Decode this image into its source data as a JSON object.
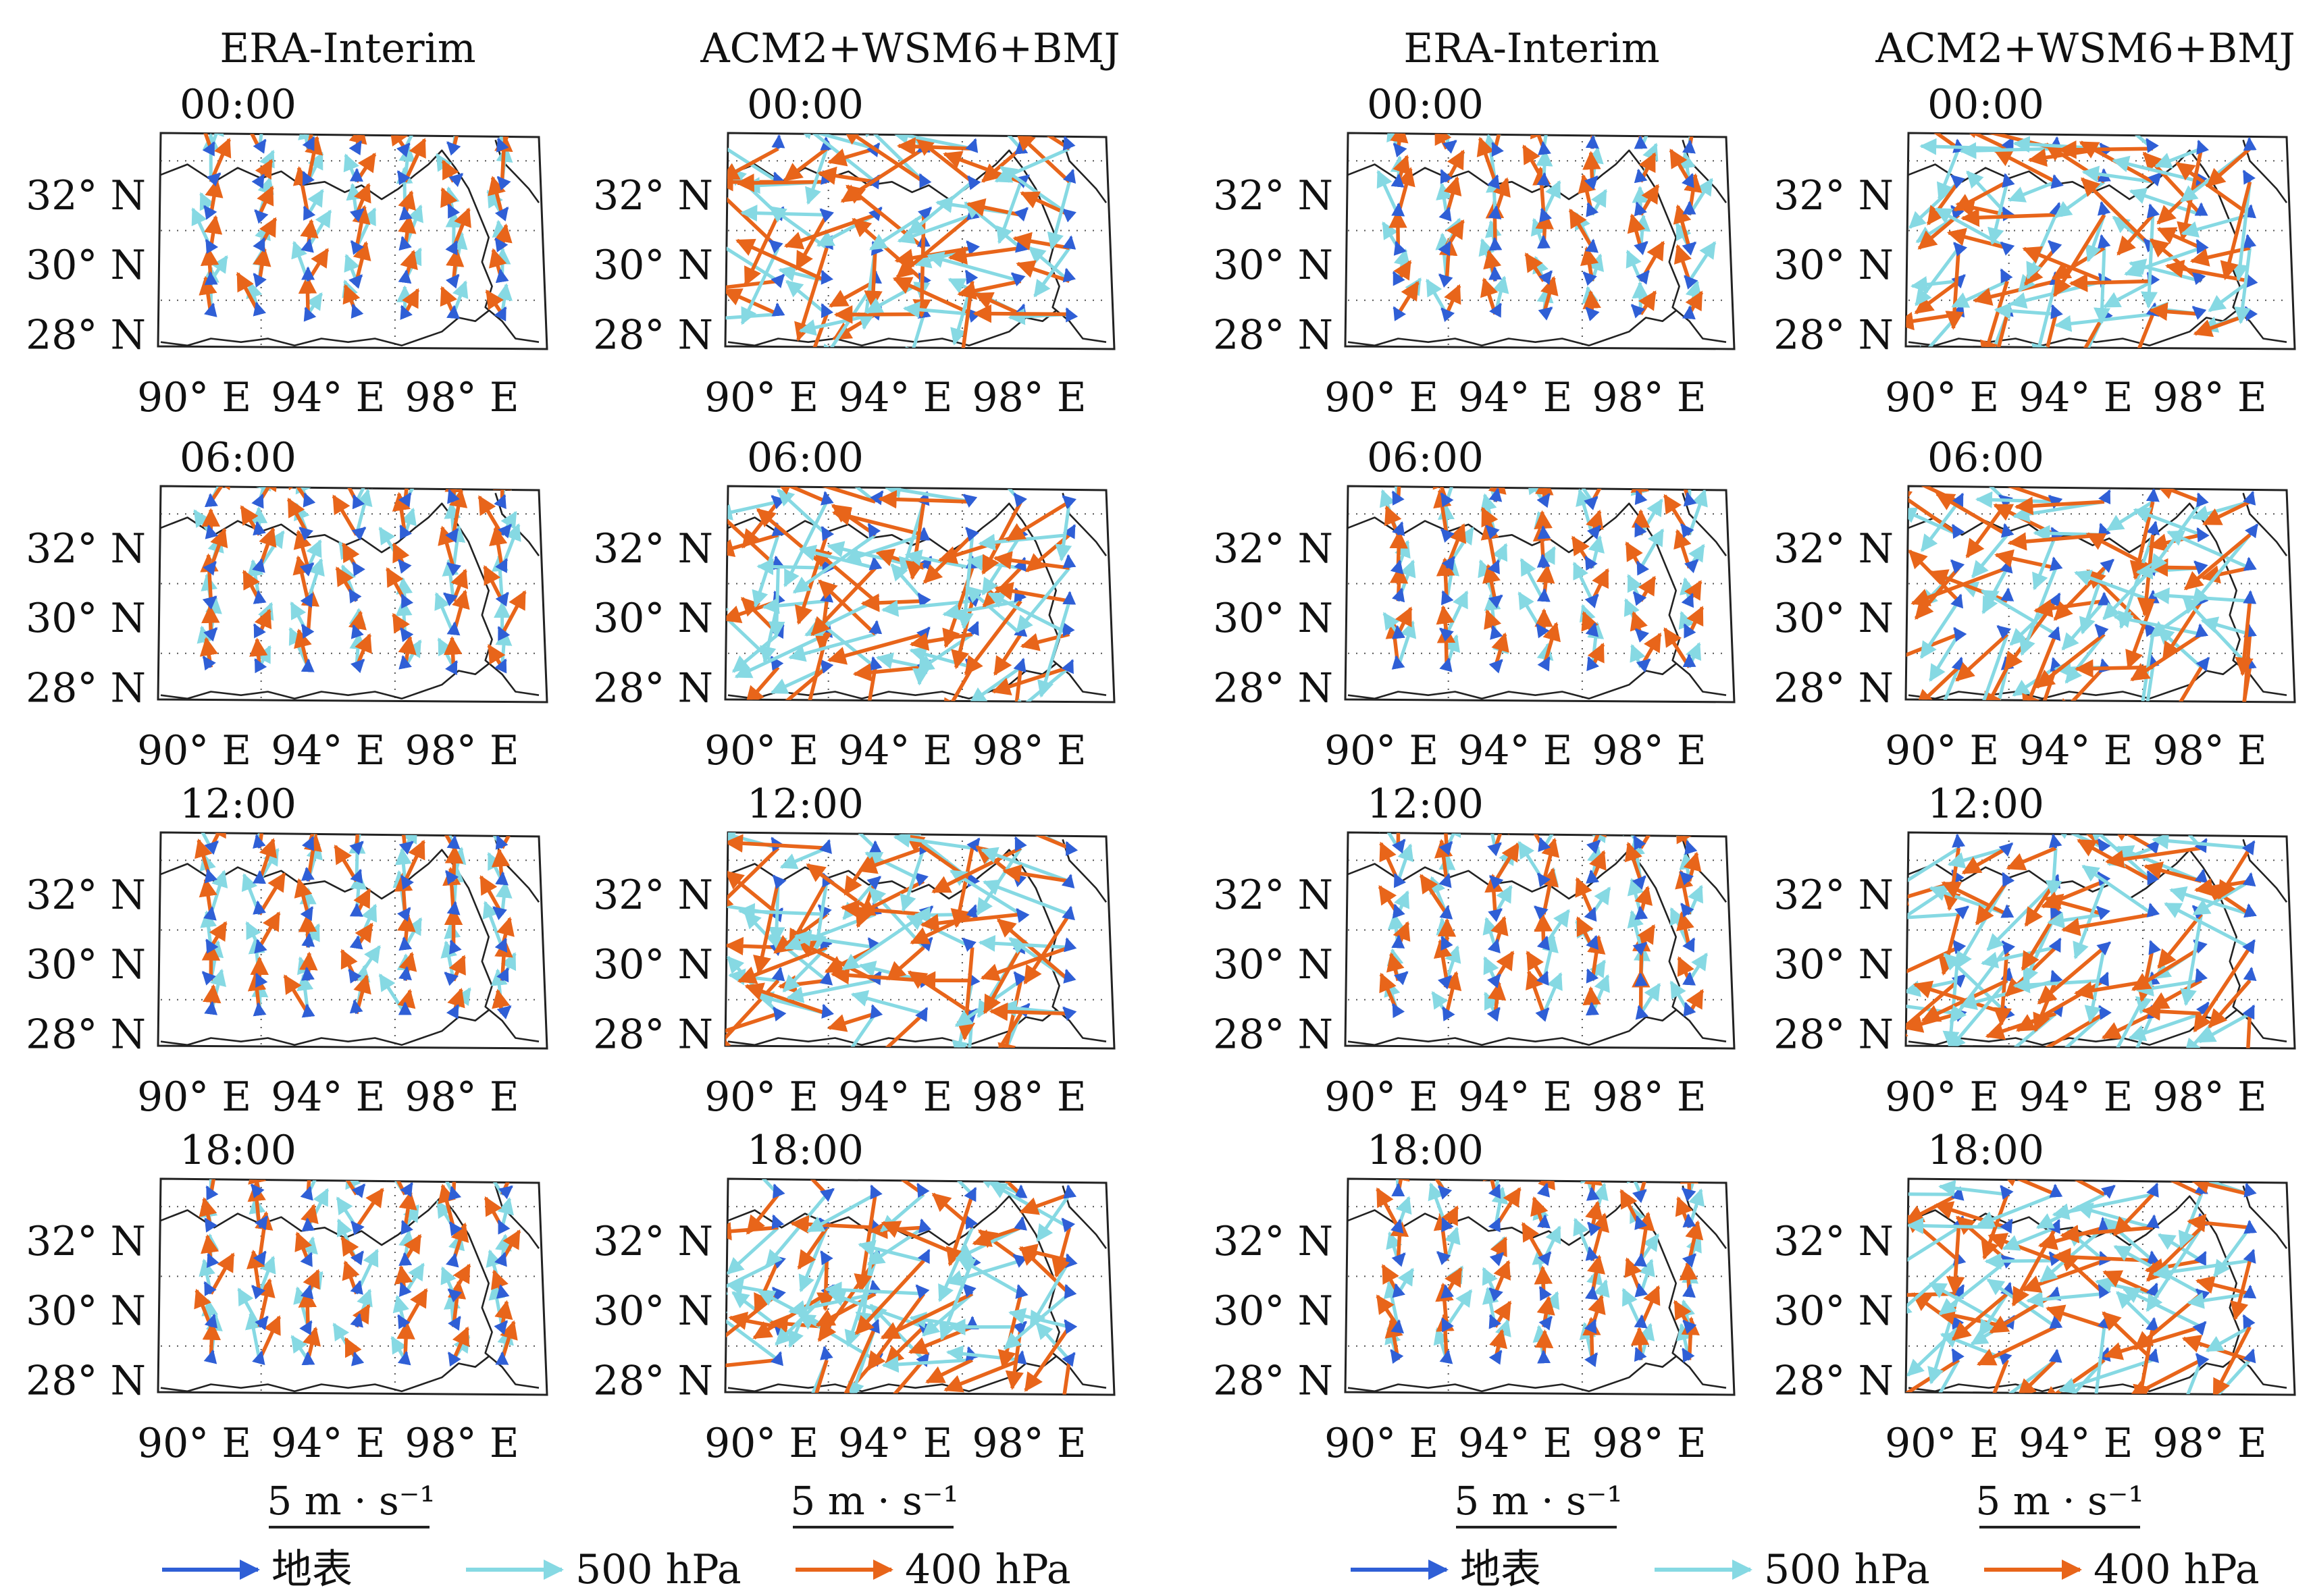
{
  "chart_data": {
    "type": "vector-map-panels",
    "columns": [
      "ERA-Interim",
      "ACM2+WSM6+BMJ",
      "ERA-Interim",
      "ACM2+WSM6+BMJ"
    ],
    "times": [
      "00:00",
      "06:00",
      "12:00",
      "18:00"
    ],
    "lat_ticks": [
      "28° N",
      "30° N",
      "32° N"
    ],
    "lon_ticks": [
      "90° E",
      "94° E",
      "98° E"
    ],
    "lat_range": [
      27.6,
      33.8
    ],
    "lon_range": [
      89.0,
      100.3
    ],
    "scale_label": "5 m · s⁻¹",
    "scale_speed": 5,
    "colors": {
      "surface": "#2f5fd6",
      "hpa500": "#86d9e3",
      "hpa400": "#e8651a"
    },
    "legend": [
      {
        "key": "surface",
        "label": "地表"
      },
      {
        "key": "hpa500",
        "label": "500 hPa"
      },
      {
        "key": "hpa400",
        "label": "400 hPa"
      }
    ]
  }
}
